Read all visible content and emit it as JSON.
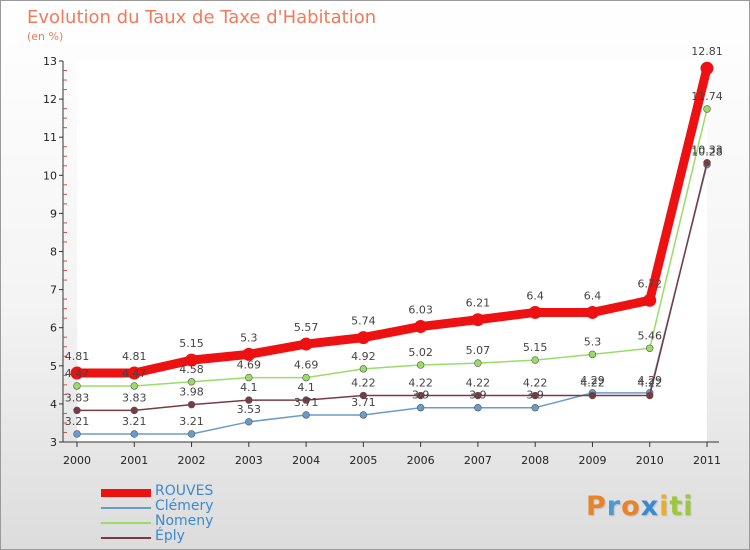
{
  "title": "Evolution du Taux de Taxe d'Habitation",
  "unit": "(en %)",
  "logo": {
    "letters": [
      "P",
      "r",
      "o",
      "x",
      "i",
      "t",
      "i"
    ],
    "colors": [
      "#e7842a",
      "#4a9ad4",
      "#e7842a",
      "#3a8ad0",
      "#e8b020",
      "#9cc83c",
      "#9cc83c"
    ]
  },
  "chart_data": {
    "type": "line",
    "title": "Evolution du Taux de Taxe d'Habitation",
    "ylabel": "(en %)",
    "x": [
      "2000",
      "2001",
      "2002",
      "2003",
      "2004",
      "2005",
      "2006",
      "2007",
      "2008",
      "2009",
      "2010",
      "2011"
    ],
    "ylim": [
      3,
      13
    ],
    "yticks": [
      "3",
      "4",
      "5",
      "6",
      "7",
      "8",
      "9",
      "10",
      "11",
      "12",
      "13"
    ],
    "legend_position": "bottom-left",
    "series": [
      {
        "name": "ROUVES",
        "color": "#ee1111",
        "emphasis": true,
        "values": [
          4.81,
          4.81,
          5.15,
          5.3,
          5.57,
          5.74,
          6.03,
          6.21,
          6.4,
          6.4,
          6.72,
          12.81
        ],
        "labels": [
          "4.81",
          "4.81",
          "5.15",
          "5.3",
          "5.57",
          "5.74",
          "6.03",
          "6.21",
          "6.4",
          "6.4",
          "6.72",
          "12.81"
        ]
      },
      {
        "name": "Clémery",
        "color": "#6b9cc8",
        "values": [
          3.21,
          3.21,
          3.21,
          3.53,
          3.71,
          3.71,
          3.9,
          3.9,
          3.9,
          4.29,
          4.29,
          10.28
        ],
        "labels": [
          "3.21",
          "3.21",
          "3.21",
          "3.53",
          "3.71",
          "3.71",
          "3.9",
          "3.9",
          "3.9",
          "4.29",
          "4.29",
          "10.28"
        ]
      },
      {
        "name": "Nomeny",
        "color": "#99dd66",
        "values": [
          4.47,
          4.47,
          4.58,
          4.69,
          4.69,
          4.92,
          5.02,
          5.07,
          5.15,
          5.3,
          5.46,
          11.74
        ],
        "labels": [
          "4.47",
          "4.47",
          "4.58",
          "4.69",
          "4.69",
          "4.92",
          "5.02",
          "5.07",
          "5.15",
          "5.3",
          "5.46",
          "11.74"
        ]
      },
      {
        "name": "Éply",
        "color": "#7a3a44",
        "values": [
          3.83,
          3.83,
          3.98,
          4.1,
          4.1,
          4.22,
          4.22,
          4.22,
          4.22,
          4.22,
          4.22,
          10.33
        ],
        "labels": [
          "3.83",
          "3.83",
          "3.98",
          "4.1",
          "4.1",
          "4.22",
          "4.22",
          "4.22",
          "4.22",
          "4.22",
          "4.22",
          "10.33"
        ]
      }
    ]
  }
}
